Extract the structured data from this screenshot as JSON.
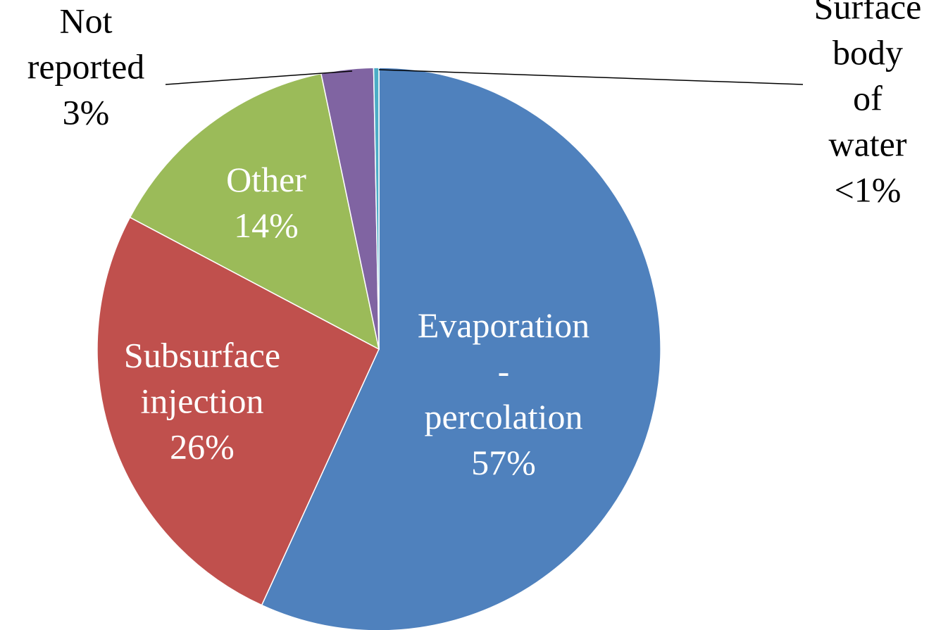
{
  "chart_data": {
    "type": "pie",
    "categories": [
      "Evaporation\n-\npercolation",
      "Subsurface\ninjection",
      "Other",
      "Not\nreported",
      "Surface\nbody of\nwater"
    ],
    "values": [
      57,
      26,
      14,
      3,
      0.3
    ],
    "value_labels": [
      "57%",
      "26%",
      "14%",
      "3%",
      "<1%"
    ],
    "colors": [
      "#4f81bd",
      "#c0504d",
      "#9bbb59",
      "#8064a2",
      "#4bacc6"
    ]
  }
}
